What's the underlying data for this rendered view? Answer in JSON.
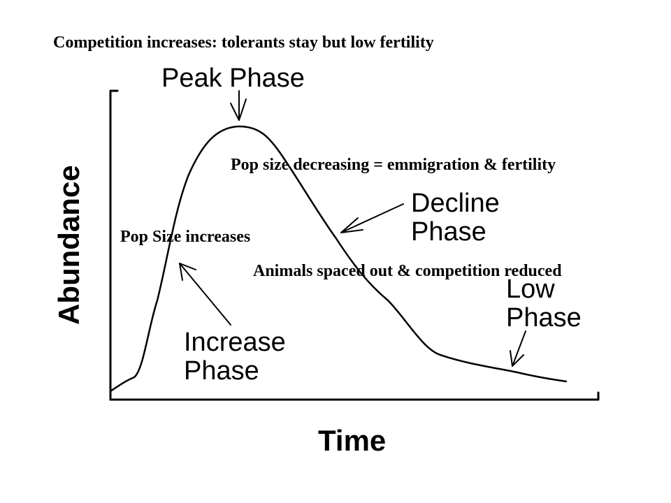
{
  "diagram": {
    "type": "population-cycle",
    "x_axis_label": "Time",
    "y_axis_label": "Abundance",
    "phase_labels": {
      "peak": "Peak Phase",
      "decline": [
        "Decline",
        "Phase"
      ],
      "low": [
        "Low",
        "Phase"
      ],
      "increase": [
        "Increase",
        "Phase"
      ]
    },
    "annotations": {
      "top": "Competition increases: tolerants stay but low fertility",
      "decreasing": "Pop size decreasing = emmigration & fertility",
      "increases": "Pop Size increases",
      "spaced": "Animals spaced out & competition reduced"
    },
    "colors": {
      "ink": "#000000",
      "background": "#ffffff"
    }
  }
}
